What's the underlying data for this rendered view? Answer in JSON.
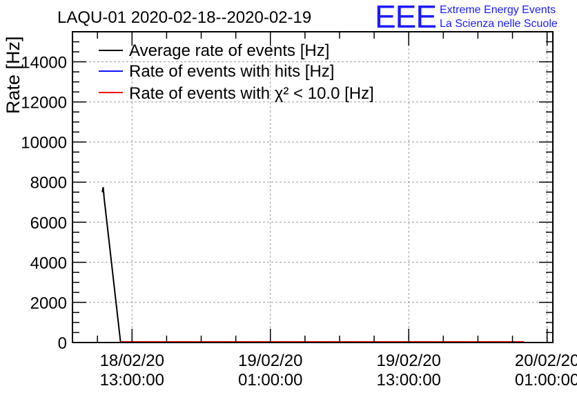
{
  "chart_data": {
    "type": "line",
    "title": "LAQU-01 2020-02-18--2020-02-19",
    "ylabel": "Rate [Hz]",
    "xlabel": "",
    "ylim": [
      0,
      15500
    ],
    "xlim": [
      "2020-02-18 07:50:00",
      "2020-02-20 01:30:00"
    ],
    "y_ticks": [
      0,
      2000,
      4000,
      6000,
      8000,
      10000,
      12000,
      14000
    ],
    "x_ticks": [
      {
        "x": "2020-02-18 13:00:00",
        "line1": "18/02/20",
        "line2": "13:00:00"
      },
      {
        "x": "2020-02-19 01:00:00",
        "line1": "19/02/20",
        "line2": "01:00:00"
      },
      {
        "x": "2020-02-19 13:00:00",
        "line1": "19/02/20",
        "line2": "13:00:00"
      },
      {
        "x": "2020-02-20 01:00:00",
        "line1": "20/02/20",
        "line2": "01:00:00"
      }
    ],
    "grid": true,
    "legend_position": "top-left",
    "series": [
      {
        "name": "Average rate of events [Hz]",
        "color": "#000000",
        "points": [
          [
            "2020-02-18 10:25:00",
            7500
          ],
          [
            "2020-02-18 10:30:00",
            7750
          ],
          [
            "2020-02-18 10:35:00",
            7200
          ],
          [
            "2020-02-18 12:00:00",
            0
          ],
          [
            "2020-02-19 23:00:00",
            0
          ]
        ]
      },
      {
        "name": "Rate of events with hits [Hz]",
        "color": "#1010ff",
        "points": [
          [
            "2020-02-18 12:00:00",
            0
          ],
          [
            "2020-02-19 23:00:00",
            0
          ]
        ]
      },
      {
        "name": "Rate of events with χ² < 10.0 [Hz]",
        "color": "#ff0000",
        "points": [
          [
            "2020-02-18 12:00:00",
            0
          ],
          [
            "2020-02-19 23:00:00",
            0
          ]
        ]
      }
    ]
  },
  "logo": {
    "mark": "EEE",
    "line1": "Extreme Energy Events",
    "line2": "La Scienza nelle Scuole"
  }
}
